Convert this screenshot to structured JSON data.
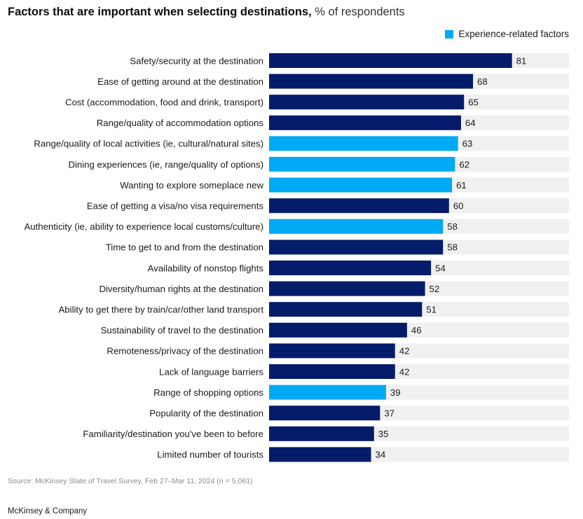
{
  "title": {
    "main": "Factors that are important when selecting destinations,",
    "unit": "% of respondents"
  },
  "legend": {
    "label": "Experience-related factors",
    "color": "#00a9f4"
  },
  "colors": {
    "default_bar": "#051c6b",
    "experience_bar": "#00a9f4",
    "track": "#f0f0f0"
  },
  "chart_data": {
    "type": "bar",
    "orientation": "horizontal",
    "xlim": [
      0,
      100
    ],
    "grid": false,
    "legend_position": "top-right",
    "categories": [
      "Safety/security at the destination",
      "Ease of getting around at the destination",
      "Cost (accommodation, food and drink, transport)",
      "Range/quality of accommodation options",
      "Range/quality of local activities (ie, cultural/natural sites)",
      "Dining experiences (ie, range/quality of options)",
      "Wanting to explore someplace new",
      "Ease of getting a visa/no visa requirements",
      "Authenticity (ie, ability to experience local customs/culture)",
      "Time to get to and from the destination",
      "Availability of nonstop flights",
      "Diversity/human rights at the destination",
      "Ability to get there by train/car/other land transport",
      "Sustainability of travel to the destination",
      "Remoteness/privacy of the destination",
      "Lack of language barriers",
      "Range of shopping options",
      "Popularity of the destination",
      "Familiarity/destination you've been to before",
      "Limited number of tourists"
    ],
    "values": [
      81,
      68,
      65,
      64,
      63,
      62,
      61,
      60,
      58,
      58,
      54,
      52,
      51,
      46,
      42,
      42,
      39,
      37,
      35,
      34
    ],
    "experience_related": [
      false,
      false,
      false,
      false,
      true,
      true,
      true,
      false,
      true,
      false,
      false,
      false,
      false,
      false,
      false,
      false,
      true,
      false,
      false,
      false
    ]
  },
  "footer": {
    "source": "Source: McKinsey State of Travel Survey, Feb 27–Mar 11, 2024 (n = 5,061)",
    "brand": "McKinsey & Company"
  }
}
